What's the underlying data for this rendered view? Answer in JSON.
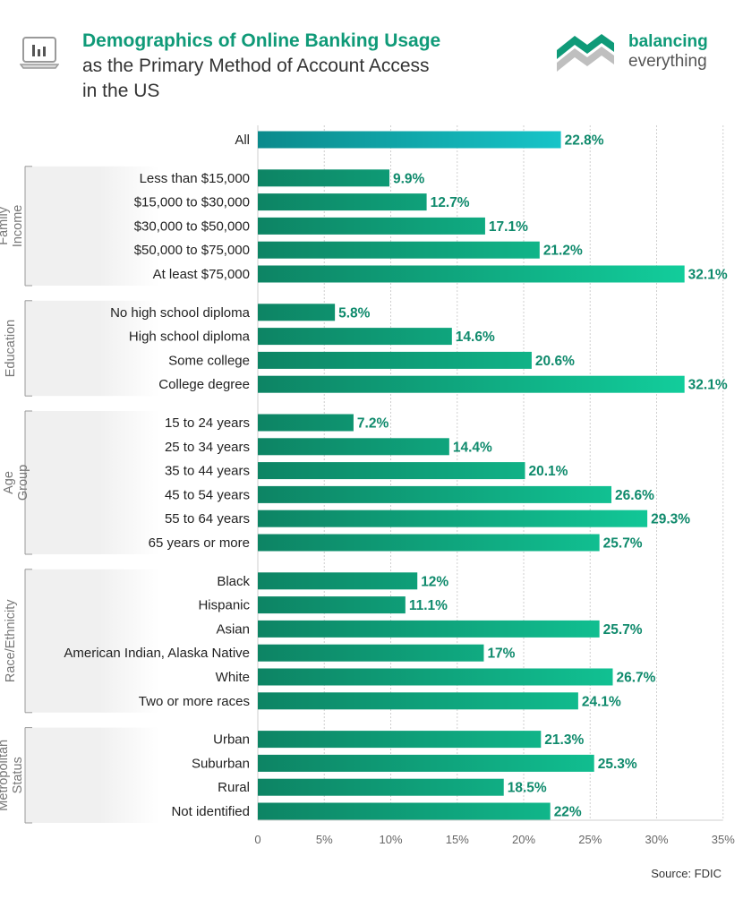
{
  "header": {
    "title_main": "Demographics of Online Banking Usage",
    "title_sub_1": "as the Primary Method of Account Access",
    "title_sub_2": "in the US",
    "icon": "chart-icon"
  },
  "logo": {
    "line1": "balancing",
    "line2": "everything",
    "brand_color": "#0f9a78"
  },
  "source": "Source: FDIC",
  "colors": {
    "all_bar_start": "#0b8a8c",
    "all_bar_end": "#17c4c8",
    "bar_start": "#0d8464",
    "bar_end": "#12cf9d",
    "value_label": "#0f8a6c",
    "group_band": "#f0f0f0"
  },
  "chart_data": {
    "type": "bar",
    "orientation": "horizontal",
    "title": "Demographics of Online Banking Usage as the Primary Method of Account Access in the US",
    "xlim": [
      0,
      35
    ],
    "x_ticks": [
      "0",
      "5%",
      "10%",
      "15%",
      "20%",
      "25%",
      "30%",
      "35%"
    ],
    "grid": true,
    "value_suffix": "%",
    "groups": [
      {
        "name": "",
        "rows": [
          {
            "label": "All",
            "value": 22.8,
            "text": "22.8%"
          }
        ]
      },
      {
        "name": "Family Income",
        "rows": [
          {
            "label": "Less than $15,000",
            "value": 9.9,
            "text": "9.9%"
          },
          {
            "label": "$15,000 to $30,000",
            "value": 12.7,
            "text": "12.7%"
          },
          {
            "label": "$30,000 to $50,000",
            "value": 17.1,
            "text": "17.1%"
          },
          {
            "label": "$50,000 to $75,000",
            "value": 21.2,
            "text": "21.2%"
          },
          {
            "label": "At least $75,000",
            "value": 32.1,
            "text": "32.1%"
          }
        ]
      },
      {
        "name": "Education",
        "rows": [
          {
            "label": "No high school diploma",
            "value": 5.8,
            "text": "5.8%"
          },
          {
            "label": "High school diploma",
            "value": 14.6,
            "text": "14.6%"
          },
          {
            "label": "Some college",
            "value": 20.6,
            "text": "20.6%"
          },
          {
            "label": "College degree",
            "value": 32.1,
            "text": "32.1%"
          }
        ]
      },
      {
        "name": "Age Group",
        "rows": [
          {
            "label": "15 to 24 years",
            "value": 7.2,
            "text": "7.2%"
          },
          {
            "label": "25 to 34 years",
            "value": 14.4,
            "text": "14.4%"
          },
          {
            "label": "35 to 44 years",
            "value": 20.1,
            "text": "20.1%"
          },
          {
            "label": "45 to 54 years",
            "value": 26.6,
            "text": "26.6%"
          },
          {
            "label": "55 to 64 years",
            "value": 29.3,
            "text": "29.3%"
          },
          {
            "label": "65 years or more",
            "value": 25.7,
            "text": "25.7%"
          }
        ]
      },
      {
        "name": "Race/Ethnicity",
        "rows": [
          {
            "label": "Black",
            "value": 12,
            "text": "12%"
          },
          {
            "label": "Hispanic",
            "value": 11.1,
            "text": "11.1%"
          },
          {
            "label": "Asian",
            "value": 25.7,
            "text": "25.7%"
          },
          {
            "label": "American Indian, Alaska Native",
            "value": 17,
            "text": "17%"
          },
          {
            "label": "White",
            "value": 26.7,
            "text": "26.7%"
          },
          {
            "label": "Two or more races",
            "value": 24.1,
            "text": "24.1%"
          }
        ]
      },
      {
        "name": "Metropolitan Status",
        "rows": [
          {
            "label": "Urban",
            "value": 21.3,
            "text": "21.3%"
          },
          {
            "label": "Suburban",
            "value": 25.3,
            "text": "25.3%"
          },
          {
            "label": "Rural",
            "value": 18.5,
            "text": "18.5%"
          },
          {
            "label": "Not identified",
            "value": 22,
            "text": "22%"
          }
        ]
      }
    ]
  }
}
